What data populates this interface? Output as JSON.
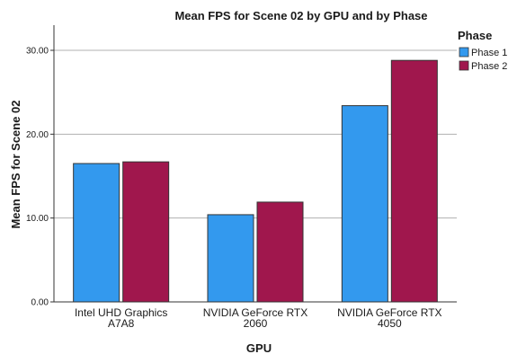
{
  "chart_data": {
    "type": "bar",
    "title": "Mean FPS for Scene 02 by GPU and by Phase",
    "xlabel": "GPU",
    "ylabel": "Mean FPS for Scene 02",
    "ylim": [
      0,
      33
    ],
    "yticks": [
      "0.00",
      "10.00",
      "20.00",
      "30.00"
    ],
    "grid": true,
    "legend_title": "Phase",
    "legend_position": "top-right",
    "categories": [
      [
        "Intel UHD Graphics",
        "A7A8"
      ],
      [
        "NVIDIA GeForce RTX",
        "2060"
      ],
      [
        "NVIDIA GeForce RTX",
        "4050"
      ]
    ],
    "series": [
      {
        "name": "Phase 1",
        "color": "#3399ee",
        "values": [
          16.5,
          10.4,
          23.4
        ]
      },
      {
        "name": "Phase 2",
        "color": "#a0174d",
        "values": [
          16.7,
          11.9,
          28.8
        ]
      }
    ]
  }
}
